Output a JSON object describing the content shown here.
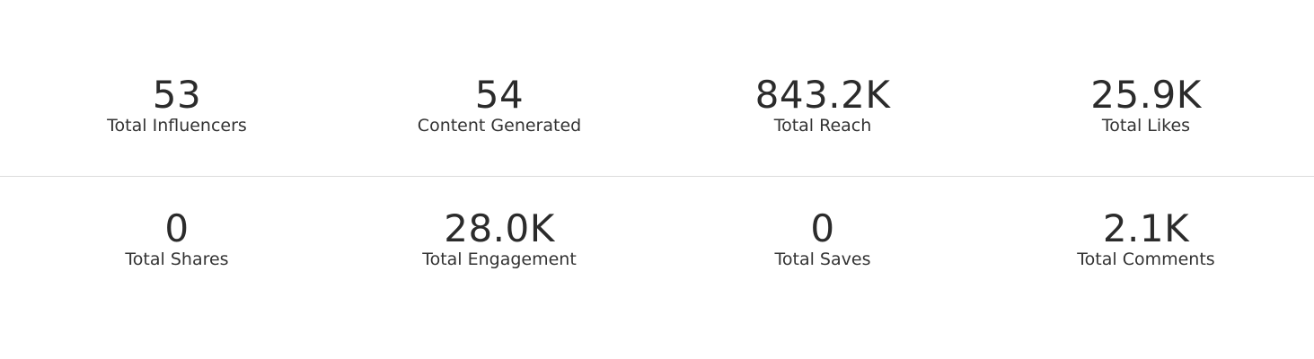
{
  "stats": [
    {
      "value": "53",
      "label": "Total Influencers"
    },
    {
      "value": "54",
      "label": "Content Generated"
    },
    {
      "value": "843.2K",
      "label": "Total Reach"
    },
    {
      "value": "25.9K",
      "label": "Total Likes"
    },
    {
      "value": "0",
      "label": "Total Shares"
    },
    {
      "value": "28.0K",
      "label": "Total Engagement"
    },
    {
      "value": "0",
      "label": "Total Saves"
    },
    {
      "value": "2.1K",
      "label": "Total Comments"
    }
  ],
  "colors": {
    "text": "#2b2b2b",
    "divider": "#dcdcdc",
    "background": "#ffffff"
  }
}
